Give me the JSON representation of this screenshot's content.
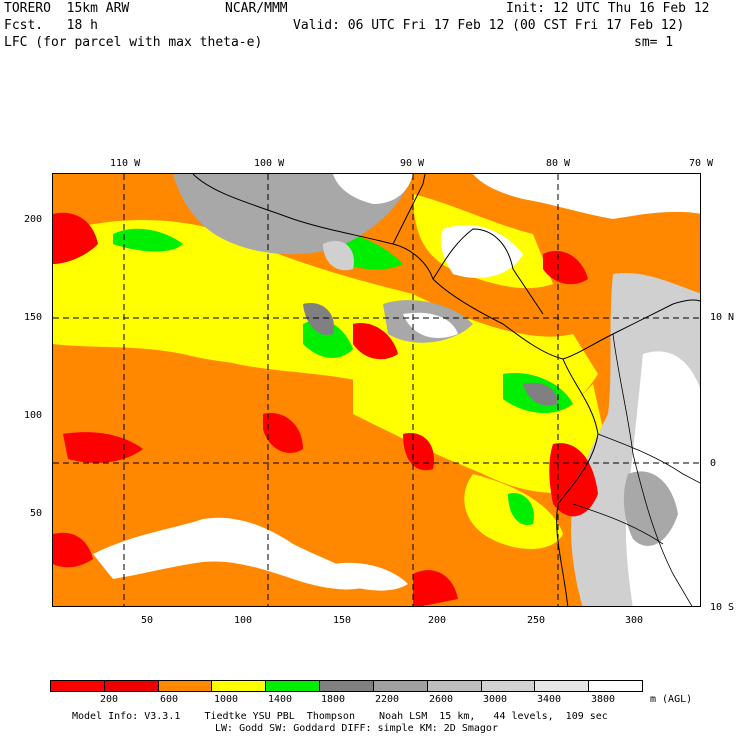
{
  "header": {
    "model": "TORERO  15km ARW",
    "org": "NCAR/MMM",
    "init": "Init: 12 UTC Thu 16 Feb 12",
    "fcst": "Fcst.   18 h",
    "valid": "Valid: 06 UTC Fri 17 Feb 12 (00 CST Fri 17 Feb 12)",
    "field": "LFC (for parcel with max theta-e)",
    "smooth": "sm= 1"
  },
  "top_lon_labels": [
    "110 W",
    "100 W",
    "90 W",
    "80 W",
    "70 W"
  ],
  "left_y_labels": [
    "200",
    "150",
    "100",
    "50"
  ],
  "bottom_x_labels": [
    "50",
    "100",
    "150",
    "200",
    "250",
    "300"
  ],
  "right_lat_labels": [
    "10 N",
    "0",
    "10 S"
  ],
  "colorbar": {
    "thresholds": [
      "200",
      "600",
      "1000",
      "1400",
      "1800",
      "2200",
      "2600",
      "3000",
      "3400",
      "3800"
    ],
    "units": "m (AGL)",
    "colors": [
      "#ff0000",
      "#ee0000",
      "#ff8800",
      "#ffff00",
      "#00ee00",
      "#808080",
      "#a0a0a0",
      "#bebebe",
      "#d2d2d2",
      "#e6e6e6",
      "#ffffff"
    ]
  },
  "footer": {
    "line1": "Model Info: V3.3.1    Tiedtke YSU PBL  Thompson    Noah LSM  15 km,   44 levels,  109 sec",
    "line2": "LW: Godd SW: Goddard DIFF: simple KM: 2D Smagor"
  },
  "colors": {
    "red": "#ff0000",
    "orange": "#ff8800",
    "yellow": "#ffff00",
    "green": "#00ee00",
    "gray_dark": "#808080",
    "gray_mid": "#a8a8a8",
    "gray_light": "#d0d0d0",
    "white": "#ffffff"
  }
}
